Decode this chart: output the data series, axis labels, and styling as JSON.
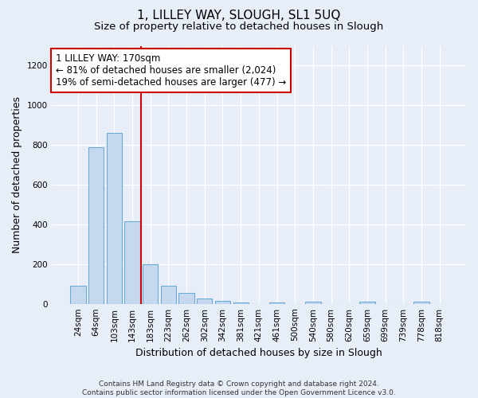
{
  "title_line1": "1, LILLEY WAY, SLOUGH, SL1 5UQ",
  "title_line2": "Size of property relative to detached houses in Slough",
  "xlabel": "Distribution of detached houses by size in Slough",
  "ylabel": "Number of detached properties",
  "categories": [
    "24sqm",
    "64sqm",
    "103sqm",
    "143sqm",
    "183sqm",
    "223sqm",
    "262sqm",
    "302sqm",
    "342sqm",
    "381sqm",
    "421sqm",
    "461sqm",
    "500sqm",
    "540sqm",
    "580sqm",
    "620sqm",
    "659sqm",
    "699sqm",
    "739sqm",
    "778sqm",
    "818sqm"
  ],
  "values": [
    90,
    790,
    860,
    415,
    200,
    90,
    55,
    25,
    15,
    5,
    0,
    5,
    0,
    10,
    0,
    0,
    10,
    0,
    0,
    10,
    0
  ],
  "bar_color": "#c5d8f0",
  "bar_edge_color": "#6aaad4",
  "red_line_x": 3.5,
  "red_line_color": "#cc0000",
  "annotation_text": "1 LILLEY WAY: 170sqm\n← 81% of detached houses are smaller (2,024)\n19% of semi-detached houses are larger (477) →",
  "annotation_box_color": "#ffffff",
  "annotation_box_edge": "#cc0000",
  "ylim": [
    0,
    1300
  ],
  "yticks": [
    0,
    200,
    400,
    600,
    800,
    1000,
    1200
  ],
  "footnote": "Contains HM Land Registry data © Crown copyright and database right 2024.\nContains public sector information licensed under the Open Government Licence v3.0.",
  "background_color": "#e8eef8",
  "plot_bg_color": "#e8eef8",
  "grid_color": "#ffffff",
  "title_fontsize": 11,
  "subtitle_fontsize": 9.5,
  "axis_label_fontsize": 9,
  "tick_fontsize": 7.5,
  "annotation_fontsize": 8.5,
  "footnote_fontsize": 6.5
}
